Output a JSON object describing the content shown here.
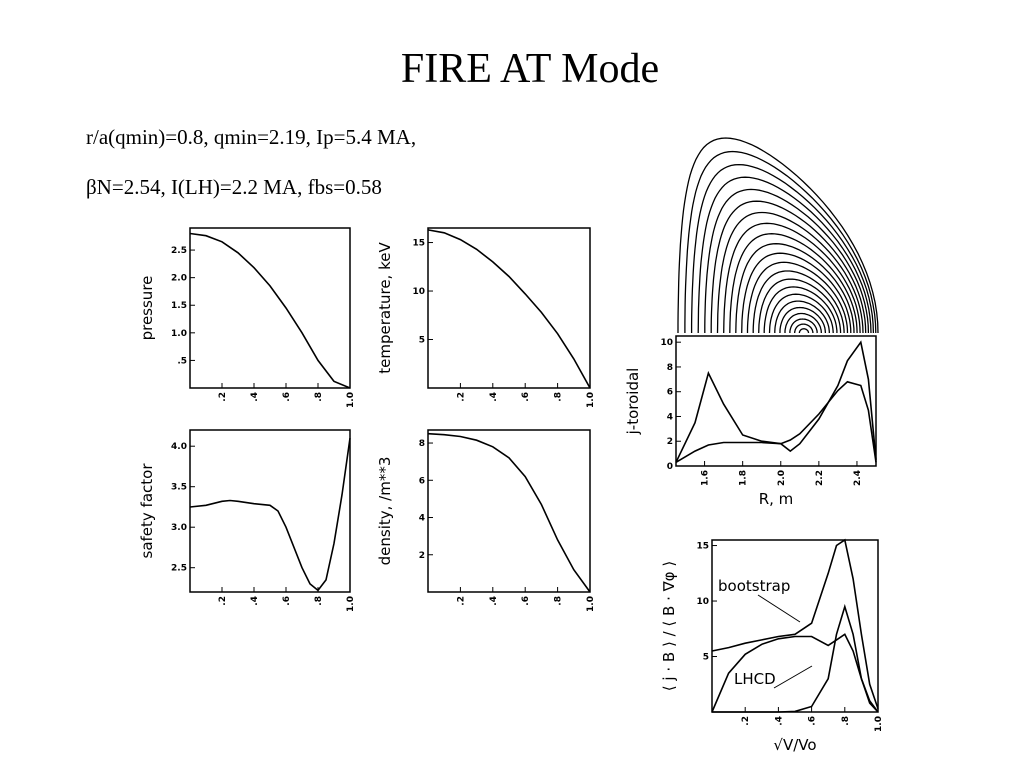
{
  "title": "FIRE AT Mode",
  "params": [
    "r/a(qmin)=0.8, qmin=2.19, Ip=5.4 MA,",
    "βN=2.54, I(LH)=2.2 MA, fbs=0.58"
  ],
  "chart_data": [
    {
      "type": "line",
      "ylabel": "pressure",
      "x": [
        0,
        0.1,
        0.2,
        0.3,
        0.4,
        0.5,
        0.6,
        0.7,
        0.8,
        0.9,
        1.0
      ],
      "series": [
        {
          "color": "#000000",
          "values": [
            2.8,
            2.76,
            2.65,
            2.45,
            2.18,
            1.85,
            1.45,
            1.0,
            0.5,
            0.12,
            0.0
          ]
        }
      ],
      "xlim": [
        0,
        1.0
      ],
      "xticks": [
        {
          "value": 0.2,
          "label": ".2"
        },
        {
          "value": 0.4,
          "label": ".4"
        },
        {
          "value": 0.6,
          "label": ".6"
        },
        {
          "value": 0.8,
          "label": ".8"
        },
        {
          "value": 1.0,
          "label": "1.0"
        }
      ],
      "ylim": [
        0,
        2.9
      ],
      "yticks": [
        {
          "value": 0.5,
          "label": ".5"
        },
        {
          "value": 1.0,
          "label": "1.0"
        },
        {
          "value": 1.5,
          "label": "1.5"
        },
        {
          "value": 2.0,
          "label": "2.0"
        },
        {
          "value": 2.5,
          "label": "2.5"
        }
      ]
    },
    {
      "type": "line",
      "ylabel": "temperature, keV",
      "x": [
        0,
        0.1,
        0.2,
        0.3,
        0.4,
        0.5,
        0.6,
        0.7,
        0.8,
        0.9,
        1.0
      ],
      "series": [
        {
          "color": "#000000",
          "values": [
            16.3,
            16.0,
            15.3,
            14.3,
            13.0,
            11.5,
            9.7,
            7.8,
            5.6,
            3.0,
            0.0
          ]
        }
      ],
      "xlim": [
        0,
        1.0
      ],
      "xticks": [
        {
          "value": 0.2,
          "label": ".2"
        },
        {
          "value": 0.4,
          "label": ".4"
        },
        {
          "value": 0.6,
          "label": ".6"
        },
        {
          "value": 0.8,
          "label": ".8"
        },
        {
          "value": 1.0,
          "label": "1.0"
        }
      ],
      "ylim": [
        0,
        16.5
      ],
      "yticks": [
        5,
        10,
        15
      ]
    },
    {
      "type": "line",
      "ylabel": "safety factor",
      "x": [
        0,
        0.1,
        0.2,
        0.25,
        0.3,
        0.4,
        0.5,
        0.55,
        0.6,
        0.7,
        0.75,
        0.8,
        0.85,
        0.9,
        0.95,
        1.0
      ],
      "series": [
        {
          "color": "#000000",
          "values": [
            3.25,
            3.27,
            3.32,
            3.33,
            3.32,
            3.29,
            3.27,
            3.2,
            3.0,
            2.5,
            2.3,
            2.22,
            2.35,
            2.8,
            3.4,
            4.1
          ]
        }
      ],
      "xlim": [
        0,
        1.0
      ],
      "xticks": [
        {
          "value": 0.2,
          "label": ".2"
        },
        {
          "value": 0.4,
          "label": ".4"
        },
        {
          "value": 0.6,
          "label": ".6"
        },
        {
          "value": 0.8,
          "label": ".8"
        },
        {
          "value": 1.0,
          "label": "1.0"
        }
      ],
      "ylim": [
        2.2,
        4.2
      ],
      "yticks": [
        2.5,
        {
          "value": 3.0,
          "label": "3.0"
        },
        3.5,
        {
          "value": 4.0,
          "label": "4.0"
        }
      ]
    },
    {
      "type": "line",
      "ylabel": "density, /m**3",
      "x": [
        0,
        0.1,
        0.2,
        0.3,
        0.4,
        0.5,
        0.6,
        0.7,
        0.8,
        0.9,
        1.0
      ],
      "series": [
        {
          "color": "#000000",
          "values": [
            8.5,
            8.45,
            8.35,
            8.15,
            7.8,
            7.2,
            6.2,
            4.7,
            2.8,
            1.2,
            0.0
          ]
        }
      ],
      "xlim": [
        0,
        1.0
      ],
      "xticks": [
        {
          "value": 0.2,
          "label": ".2"
        },
        {
          "value": 0.4,
          "label": ".4"
        },
        {
          "value": 0.6,
          "label": ".6"
        },
        {
          "value": 0.8,
          "label": ".8"
        },
        {
          "value": 1.0,
          "label": "1.0"
        }
      ],
      "ylim": [
        0,
        8.7
      ],
      "yticks": [
        2,
        4,
        6,
        8
      ]
    },
    {
      "type": "line",
      "ylabel": "j-toroidal",
      "xlabel": "R, m",
      "x": [
        1.45,
        1.55,
        1.62,
        1.7,
        1.8,
        1.9,
        2.0,
        2.05,
        2.1,
        2.2,
        2.3,
        2.35,
        2.42,
        2.46,
        2.5
      ],
      "series": [
        {
          "color": "#000000",
          "values": [
            0.3,
            3.5,
            7.5,
            5,
            2.5,
            2,
            1.8,
            1.2,
            1.8,
            3.8,
            6.5,
            8.5,
            10,
            7,
            0.5
          ]
        },
        {
          "color": "#000000",
          "values": [
            0.3,
            1.2,
            1.7,
            1.9,
            1.9,
            1.9,
            1.8,
            2.1,
            2.6,
            4.2,
            6.1,
            6.8,
            6.5,
            4.5,
            0.3
          ]
        }
      ],
      "xlim": [
        1.45,
        2.5
      ],
      "xticks": [
        1.6,
        1.8,
        {
          "value": 2.0,
          "label": "2.0"
        },
        2.2,
        2.4
      ],
      "ylim": [
        0,
        10.5
      ],
      "yticks": [
        0,
        2,
        4,
        6,
        8,
        10
      ]
    },
    {
      "type": "line",
      "ylabel": "⟨ j · B ⟩ / ⟨ B · ∇φ ⟩",
      "xlabel": "√V/Vo",
      "x": [
        0,
        0.1,
        0.2,
        0.3,
        0.4,
        0.5,
        0.6,
        0.7,
        0.75,
        0.8,
        0.85,
        0.9,
        0.95,
        1.0
      ],
      "series": [
        {
          "color": "#000000",
          "values": [
            5.5,
            5.8,
            6.2,
            6.5,
            6.8,
            7.0,
            8.0,
            12.5,
            15.0,
            15.5,
            12,
            7,
            2.5,
            0.3
          ]
        },
        {
          "name": "bootstrap",
          "color": "#000000",
          "values": [
            0,
            3.5,
            5.2,
            6.1,
            6.6,
            6.8,
            6.8,
            6.0,
            6.5,
            7,
            5.5,
            3,
            1,
            0
          ]
        },
        {
          "name": "LHCD",
          "color": "#000000",
          "values": [
            0,
            0,
            0,
            0,
            0,
            0.05,
            0.5,
            3,
            7,
            9.5,
            7,
            3,
            0.8,
            0
          ]
        }
      ],
      "xlim": [
        0,
        1.0
      ],
      "xticks": [
        {
          "value": 0.2,
          "label": ".2"
        },
        {
          "value": 0.4,
          "label": ".4"
        },
        {
          "value": 0.6,
          "label": ".6"
        },
        {
          "value": 0.8,
          "label": ".8"
        },
        {
          "value": 1.0,
          "label": "1.0"
        }
      ],
      "ylim": [
        0,
        15.5
      ],
      "yticks": [
        5,
        10,
        15
      ]
    }
  ]
}
